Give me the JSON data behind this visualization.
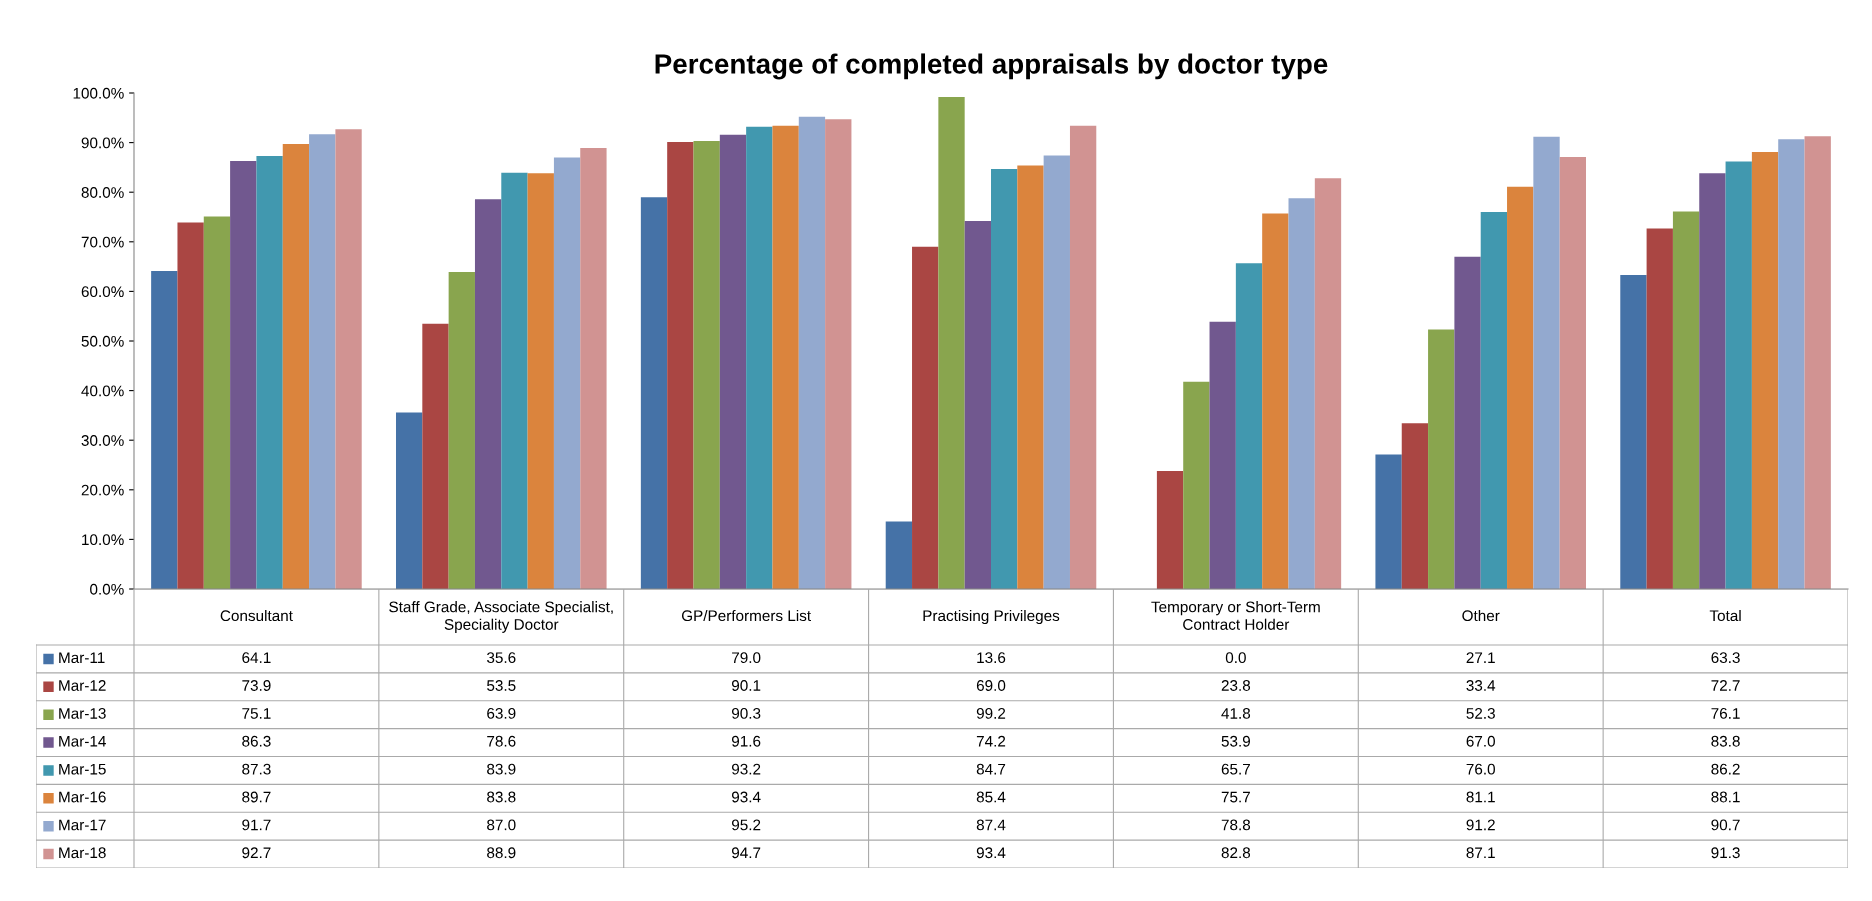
{
  "chart_data": {
    "type": "bar",
    "title": "Percentage of completed appraisals by doctor type",
    "categories": [
      "Consultant",
      "Staff Grade, Associate Specialist, Speciality Doctor",
      "GP/Performers List",
      "Practising Privileges",
      "Temporary or Short-Term Contract Holder",
      "Other",
      "Total"
    ],
    "series": [
      {
        "name": "Mar-11",
        "color": "#4572a7",
        "values": [
          64.1,
          35.6,
          79.0,
          13.6,
          0.0,
          27.1,
          63.3
        ],
        "value_labels": [
          "64.1",
          "35.6",
          "79.0",
          "13.6",
          "0.0",
          "27.1",
          "63.3"
        ]
      },
      {
        "name": "Mar-12",
        "color": "#aa4643",
        "values": [
          73.9,
          53.5,
          90.1,
          69.0,
          23.8,
          33.4,
          72.7
        ],
        "value_labels": [
          "73.9",
          "53.5",
          "90.1",
          "69.0",
          "23.8",
          "33.4",
          "72.7"
        ]
      },
      {
        "name": "Mar-13",
        "color": "#89a54e",
        "values": [
          75.1,
          63.9,
          90.3,
          99.2,
          41.8,
          52.3,
          76.1
        ],
        "value_labels": [
          "75.1",
          "63.9",
          "90.3",
          "99.2",
          "41.8",
          "52.3",
          "76.1"
        ]
      },
      {
        "name": "Mar-14",
        "color": "#71588f",
        "values": [
          86.3,
          78.6,
          91.6,
          74.2,
          53.9,
          67.0,
          83.8
        ],
        "value_labels": [
          "86.3",
          "78.6",
          "91.6",
          "74.2",
          "53.9",
          "67.0",
          "83.8"
        ]
      },
      {
        "name": "Mar-15",
        "color": "#4198af",
        "values": [
          87.3,
          83.9,
          93.2,
          84.7,
          65.7,
          76.0,
          86.2
        ],
        "value_labels": [
          "87.3",
          "83.9",
          "93.2",
          "84.7",
          "65.7",
          "76.0",
          "86.2"
        ]
      },
      {
        "name": "Mar-16",
        "color": "#db843d",
        "values": [
          89.7,
          83.8,
          93.4,
          85.4,
          75.7,
          81.1,
          88.1
        ],
        "value_labels": [
          "89.7",
          "83.8",
          "93.4",
          "85.4",
          "75.7",
          "81.1",
          "88.1"
        ]
      },
      {
        "name": "Mar-17",
        "color": "#93a9cf",
        "values": [
          91.7,
          87.0,
          95.2,
          87.4,
          78.8,
          91.2,
          90.7
        ],
        "value_labels": [
          "91.7",
          "87.0",
          "95.2",
          "87.4",
          "78.8",
          "91.2",
          "90.7"
        ]
      },
      {
        "name": "Mar-18",
        "color": "#d19392",
        "values": [
          92.7,
          88.9,
          94.7,
          93.4,
          82.8,
          87.1,
          91.3
        ],
        "value_labels": [
          "92.7",
          "88.9",
          "94.7",
          "93.4",
          "82.8",
          "87.1",
          "91.3"
        ]
      }
    ],
    "ylim": [
      0,
      100
    ],
    "yticks": [
      {
        "value": 0,
        "label": "0.0%"
      },
      {
        "value": 10,
        "label": "10.0%"
      },
      {
        "value": 20,
        "label": "20.0%"
      },
      {
        "value": 30,
        "label": "30.0%"
      },
      {
        "value": 40,
        "label": "40.0%"
      },
      {
        "value": 50,
        "label": "50.0%"
      },
      {
        "value": 60,
        "label": "60.0%"
      },
      {
        "value": 70,
        "label": "70.0%"
      },
      {
        "value": 80,
        "label": "80.0%"
      },
      {
        "value": 90,
        "label": "90.0%"
      },
      {
        "value": 100,
        "label": "100.0%"
      }
    ],
    "legend": "bottom left",
    "grid": false
  }
}
